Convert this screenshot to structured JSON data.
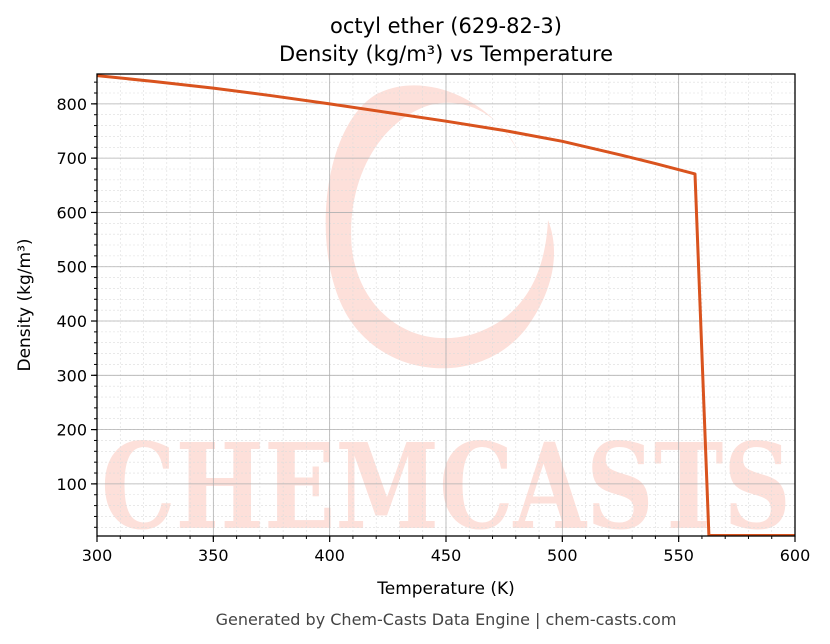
{
  "chart_data": {
    "type": "line",
    "title": "octyl ether (629-82-3)",
    "subtitle": "Density (kg/m³) vs Temperature",
    "xlabel": "Temperature (K)",
    "ylabel": "Density (kg/m³)",
    "xlim": [
      300,
      600
    ],
    "ylim": [
      4,
      855
    ],
    "xticks": [
      300,
      350,
      400,
      450,
      500,
      550,
      600
    ],
    "yticks": [
      100,
      200,
      300,
      400,
      500,
      600,
      700,
      800
    ],
    "grid": true,
    "series": [
      {
        "color": "#d9531e",
        "x": [
          300,
          325,
          350,
          375,
          400,
          425,
          450,
          475,
          500,
          525,
          540,
          557,
          563,
          600
        ],
        "y": [
          852,
          841,
          829,
          815,
          800,
          784,
          768,
          751,
          731,
          706,
          690,
          671,
          5,
          5
        ]
      }
    ]
  },
  "watermark": {
    "text": "CHEMCASTS",
    "color": "#fde0da"
  },
  "footer": "Generated by Chem-Casts Data Engine | chem-casts.com"
}
